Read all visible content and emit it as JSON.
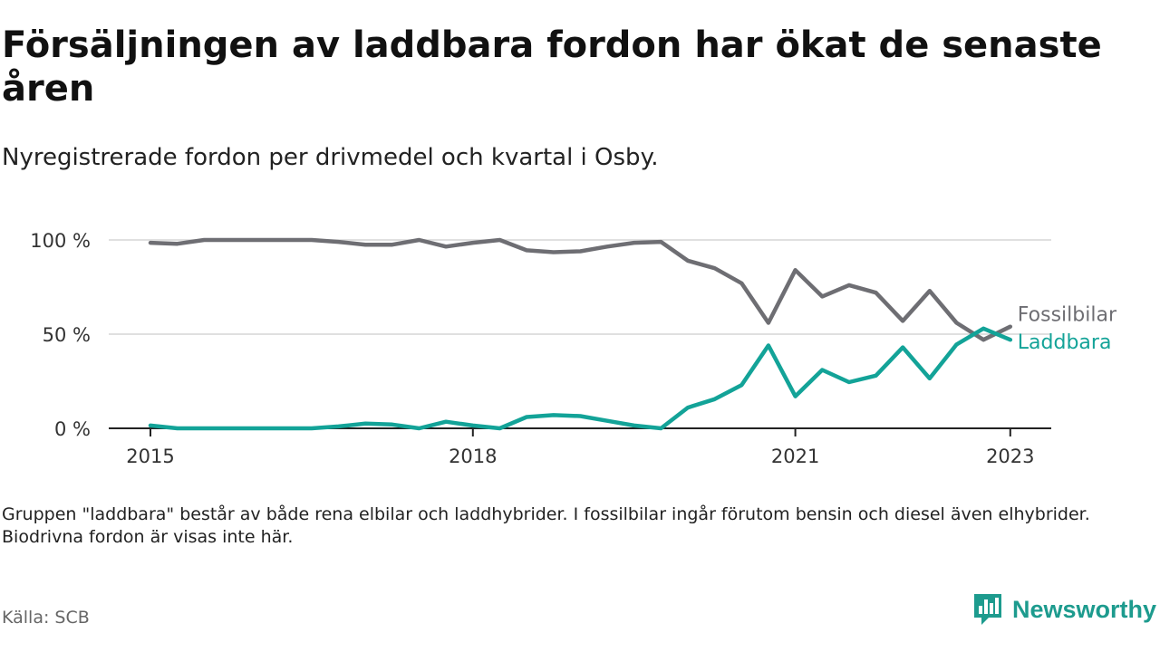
{
  "title": "Försäljningen av laddbara fordon har ökat de senaste åren",
  "subtitle": "Nyregistrerade fordon per drivmedel och kvartal i Osby.",
  "note": "Gruppen \"laddbara\" består av både rena elbilar och laddhybrider. I fossilbilar ingår förutom bensin och diesel även elhybrider. Biodrivna fordon är visas inte här.",
  "source": "Källa: SCB",
  "brand": {
    "name": "Newsworthy",
    "icon": "newsworthy-logo-icon",
    "color": "#1d9b8e"
  },
  "chart_data": {
    "type": "line",
    "x_unit": "quarter",
    "x": [
      "2015-Q1",
      "2015-Q2",
      "2015-Q3",
      "2015-Q4",
      "2016-Q1",
      "2016-Q2",
      "2016-Q3",
      "2016-Q4",
      "2017-Q1",
      "2017-Q2",
      "2017-Q3",
      "2017-Q4",
      "2018-Q1",
      "2018-Q2",
      "2018-Q3",
      "2018-Q4",
      "2019-Q1",
      "2019-Q2",
      "2019-Q3",
      "2019-Q4",
      "2020-Q1",
      "2020-Q2",
      "2020-Q3",
      "2020-Q4",
      "2021-Q1",
      "2021-Q2",
      "2021-Q3",
      "2021-Q4",
      "2022-Q1",
      "2022-Q2",
      "2022-Q3",
      "2022-Q4",
      "2023-Q1"
    ],
    "x_ticks": [
      "2015",
      "2018",
      "2021",
      "2023"
    ],
    "y_ticks": [
      "0 %",
      "50 %",
      "100 %"
    ],
    "ylim": [
      0,
      100
    ],
    "grid": true,
    "series": [
      {
        "name": "Fossilbilar",
        "color": "#6e6e73",
        "values": [
          98.5,
          98,
          100,
          100,
          100,
          100,
          100,
          99,
          97.5,
          97.5,
          100,
          96.5,
          98.5,
          100,
          94.5,
          93.5,
          94,
          96.5,
          98.5,
          99,
          89,
          85,
          77,
          56,
          84,
          70,
          76,
          72,
          57,
          73,
          56,
          47,
          54
        ]
      },
      {
        "name": "Laddbara",
        "color": "#13a398",
        "values": [
          1.5,
          0,
          0,
          0,
          0,
          0,
          0,
          1,
          2.5,
          2,
          0,
          3.5,
          1.5,
          0,
          6,
          7,
          6.5,
          4,
          1.5,
          0,
          11,
          15.5,
          23,
          44,
          17,
          31,
          24.5,
          28,
          43,
          26.5,
          44.5,
          53,
          47
        ]
      }
    ]
  }
}
